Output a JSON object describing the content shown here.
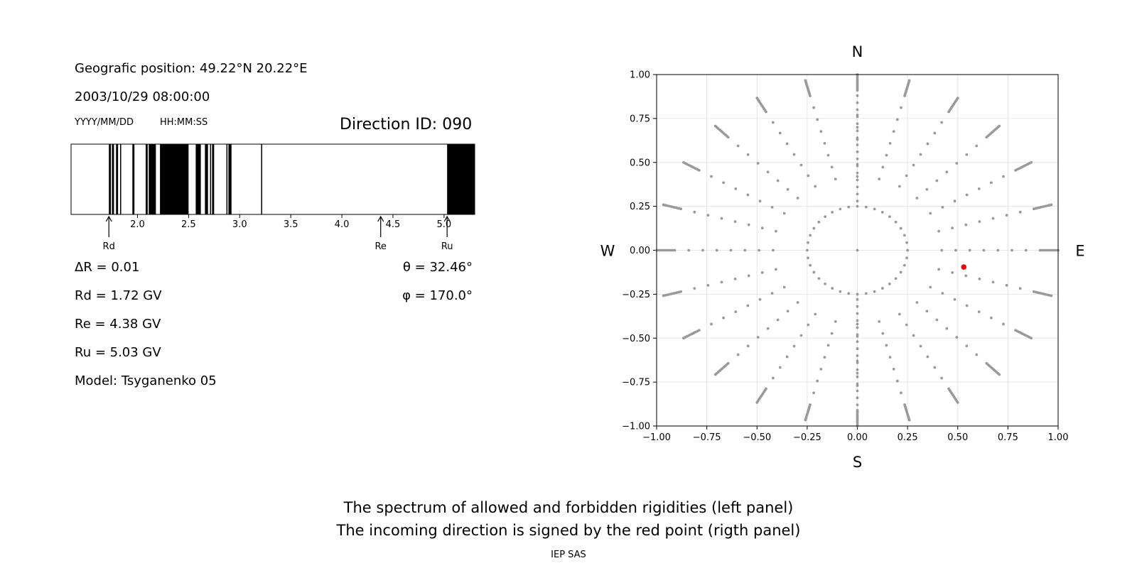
{
  "info": {
    "position": "Geografic position: 49.22°N 20.22°E",
    "datetime": "2003/10/29 08:00:00",
    "date_format": "YYYY/MM/DD",
    "time_format": "HH:MM:SS",
    "direction_id": "Direction ID: 090",
    "delta_r": "ΔR = 0.01",
    "theta": "θ = 32.46°",
    "phi": "φ = 170.0°",
    "rd": "Rd = 1.72 GV",
    "re": "Re = 4.38 GV",
    "ru": "Ru = 5.03 GV",
    "model": "Model: Tsyganenko 05"
  },
  "caption": {
    "line1": "The spectrum of allowed and forbidden rigidities (left panel)",
    "line2": "The incoming direction is signed by the red point (rigth panel)",
    "footer": "IEP SAS"
  },
  "colors": {
    "forbidden": "#000000",
    "point": "#999999",
    "highlight": "#ff0000",
    "grid": "#e6e6e6"
  },
  "chart_data": [
    {
      "type": "bar",
      "title": "",
      "xlim": [
        1.35,
        5.3
      ],
      "x_ticks": [
        "2.0",
        "2.5",
        "3.0",
        "3.5",
        "4.0",
        "4.5",
        "5.0"
      ],
      "forbidden_intervals": [
        [
          1.72,
          1.74
        ],
        [
          1.75,
          1.77
        ],
        [
          1.79,
          1.81
        ],
        [
          1.83,
          1.84
        ],
        [
          1.95,
          1.97
        ],
        [
          2.08,
          2.1
        ],
        [
          2.11,
          2.18
        ],
        [
          2.22,
          2.5
        ],
        [
          2.57,
          2.62
        ],
        [
          2.66,
          2.69
        ],
        [
          2.71,
          2.72
        ],
        [
          2.73,
          2.75
        ],
        [
          2.87,
          2.88
        ],
        [
          2.89,
          2.92
        ],
        [
          3.21,
          3.22
        ],
        [
          5.03,
          5.3
        ]
      ],
      "markers": [
        {
          "label": "Rd",
          "x": 1.72
        },
        {
          "label": "Re",
          "x": 4.38
        },
        {
          "label": "Ru",
          "x": 5.03
        }
      ]
    },
    {
      "type": "scatter",
      "xlim": [
        -1.0,
        1.0
      ],
      "ylim": [
        -1.0,
        1.0
      ],
      "x_ticks": [
        "−1.00",
        "−0.75",
        "−0.50",
        "−0.25",
        "0.00",
        "0.25",
        "0.50",
        "0.75",
        "1.00"
      ],
      "y_ticks": [
        "−1.00",
        "−0.75",
        "−0.50",
        "−0.25",
        "0.00",
        "0.25",
        "0.50",
        "0.75",
        "1.00"
      ],
      "grid": true,
      "directions": {
        "top": "N",
        "bottom": "S",
        "left": "W",
        "right": "E"
      },
      "grid_points": {
        "description": "Direction points: zenith rings (2.5°, 5°…, 17.5° at radius 0.25, then every 5° zenith) along 24 azimuth rays",
        "ring_radius_inner": 0.25,
        "azimuth_step_deg": 15,
        "inner_ring_azimuth_step_deg": 10
      },
      "highlight_point": {
        "x": 0.53,
        "y": -0.095
      }
    }
  ]
}
